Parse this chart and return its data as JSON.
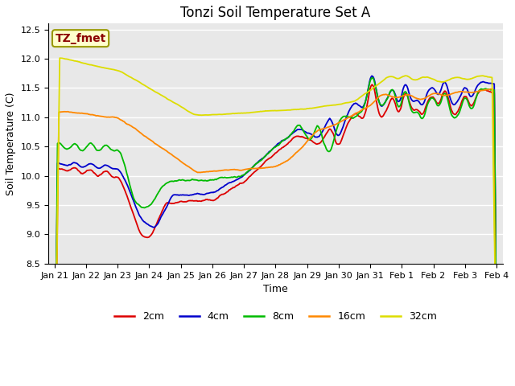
{
  "title": "Tonzi Soil Temperature Set A",
  "xlabel": "Time",
  "ylabel": "Soil Temperature (C)",
  "ylim": [
    8.5,
    12.6
  ],
  "annotation_text": "TZ_fmet",
  "legend_labels": [
    "2cm",
    "4cm",
    "8cm",
    "16cm",
    "32cm"
  ],
  "line_colors": [
    "#dd0000",
    "#0000cc",
    "#00bb00",
    "#ff8800",
    "#dddd00"
  ],
  "plot_bg_color": "#e8e8e8",
  "fig_bg_color": "#ffffff",
  "grid_color": "#ffffff",
  "title_fontsize": 12,
  "axis_fontsize": 9,
  "tick_fontsize": 8,
  "legend_fontsize": 9
}
